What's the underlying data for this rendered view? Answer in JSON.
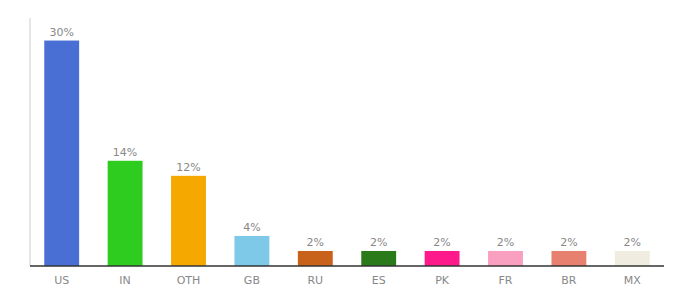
{
  "chart_data": {
    "type": "bar",
    "categories": [
      "US",
      "IN",
      "OTH",
      "GB",
      "RU",
      "ES",
      "PK",
      "FR",
      "BR",
      "MX"
    ],
    "values": [
      30,
      14,
      12,
      4,
      2,
      2,
      2,
      2,
      2,
      2
    ],
    "value_labels": [
      "30%",
      "14%",
      "12%",
      "4%",
      "2%",
      "2%",
      "2%",
      "2%",
      "2%",
      "2%"
    ],
    "colors": [
      "#4a6fd4",
      "#2ecc1e",
      "#f5a800",
      "#7ec8e8",
      "#c8621a",
      "#2a7a1a",
      "#ff1a8c",
      "#f9a0c0",
      "#e88070",
      "#f0ede0"
    ],
    "ylim": [
      0,
      33
    ],
    "grid": false,
    "data_labels": true,
    "tick_labels": "x"
  }
}
